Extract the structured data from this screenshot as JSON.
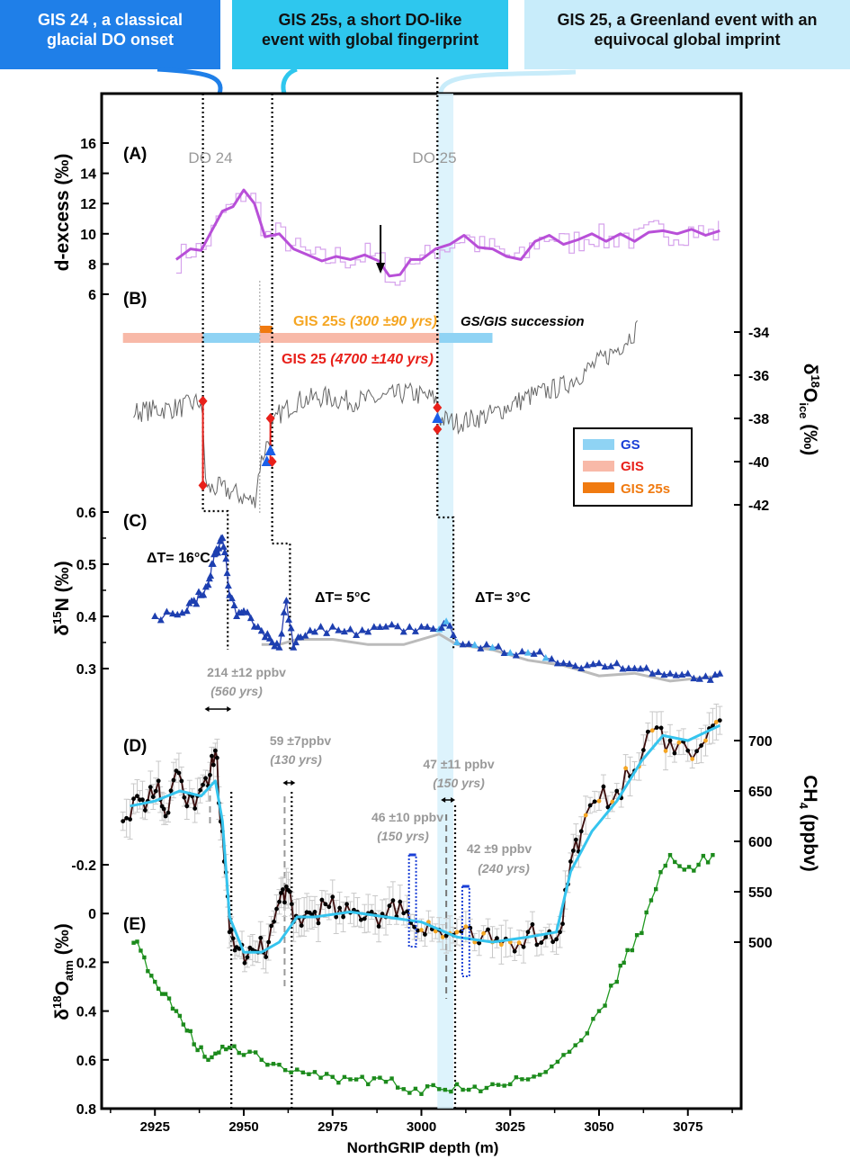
{
  "callouts": [
    {
      "line1": "GIS 24 , a classical",
      "line2": "glacial DO onset",
      "color": "#1f7fe8"
    },
    {
      "line1": "GIS 25s, a short DO-like",
      "line2": "event with global fingerprint",
      "color": "#2ec7ee"
    },
    {
      "line1": "GIS 25, a Greenland event with an",
      "line2": "equivocal global imprint",
      "color": "#c8ecfa"
    }
  ],
  "panel_letters": [
    "(A)",
    "(B)",
    "(C)",
    "(D)",
    "(E)"
  ],
  "event_labels": {
    "do24": "DO 24",
    "do25": "DO 25"
  },
  "succession": {
    "gis25s_name": "GIS 25s",
    "gis25s_duration": "(300 ±90 yrs)",
    "gis25_name": "GIS 25",
    "gis25_duration": "(4700 ±140 yrs)",
    "caption": "GS/GIS succession",
    "bars": [
      {
        "kind": "GIS",
        "from": 2916,
        "to": 2938.5
      },
      {
        "kind": "GS",
        "from": 2938.5,
        "to": 2954.5
      },
      {
        "kind": "GIS",
        "from": 2954.5,
        "to": 3005
      },
      {
        "kind": "GS",
        "from": 3005,
        "to": 3020
      },
      {
        "kind": "GIS25s",
        "from": 2954.5,
        "to": 2958
      }
    ]
  },
  "legend": {
    "gs": "GS",
    "gis": "GIS",
    "gis25s": "GIS 25s",
    "colors": {
      "gs": "#8fd3f4",
      "gis": "#f8b9a8",
      "gis25s": "#f07a10"
    }
  },
  "delta_t": {
    "a": "ΔT= 16°C",
    "b": "ΔT= 5°C",
    "c": "ΔT= 3°C"
  },
  "ch4_annotations": [
    {
      "value": "214 ±12 ppbv",
      "years": "(560 yrs)"
    },
    {
      "value": "59 ±7ppbv",
      "years": "(130 yrs)"
    },
    {
      "value": "47 ±11 ppbv",
      "years": "(150 yrs)"
    },
    {
      "value": "46 ±10 ppbv",
      "years": "(150 yrs)"
    },
    {
      "value": "42 ±9 ppbv",
      "years": "(240 yrs)"
    }
  ],
  "axes": {
    "x_label": "NorthGRIP depth (m)",
    "dexcess_label": "d-excess (‰)",
    "d18oice_label_main": "δ",
    "d18oice_label_sup": "18",
    "d18oice_label_rest": "O",
    "d18oice_label_sub": "ice",
    "d18oice_label_unit": " (‰)",
    "d15n_label_main": "δ",
    "d15n_label_sup": "15",
    "d15n_label_rest": "N (‰)",
    "ch4_label_main": "CH",
    "ch4_label_sub": "4",
    "ch4_label_unit": " (ppbv)",
    "d18oatm_label_main": "δ",
    "d18oatm_label_sup": "18",
    "d18oatm_label_rest": "O",
    "d18oatm_label_sub": "atm",
    "d18oatm_label_unit": " (‰)"
  },
  "chart_data": {
    "type": "line",
    "x_ticks": [
      "2925",
      "2950",
      "2975",
      "3000",
      "3025",
      "3050",
      "3075"
    ],
    "xlim": [
      2910,
      3090
    ],
    "panels": {
      "A": {
        "ylabel": "d-excess (‰)",
        "y_ticks": [
          "6",
          "8",
          "10",
          "12",
          "14",
          "16"
        ],
        "ylim": [
          5,
          17
        ],
        "smooth": {
          "x": [
            2931,
            2935,
            2938,
            2941,
            2944,
            2947,
            2950,
            2953,
            2956,
            2960,
            2964,
            2968,
            2972,
            2976,
            2980,
            2984,
            2988,
            2991,
            2994,
            2997,
            3000,
            3004,
            3008,
            3012,
            3016,
            3020,
            3024,
            3028,
            3032,
            3036,
            3040,
            3044,
            3048,
            3052,
            3056,
            3060,
            3064,
            3068,
            3072,
            3076,
            3080,
            3084
          ],
          "y": [
            8.3,
            9.0,
            8.9,
            10.2,
            11.5,
            11.8,
            12.9,
            12.0,
            9.8,
            10.0,
            9.0,
            8.6,
            8.2,
            8.5,
            8.3,
            8.6,
            8.2,
            7.2,
            7.3,
            8.3,
            8.3,
            9.0,
            9.3,
            9.9,
            9.1,
            9.0,
            8.5,
            8.3,
            9.5,
            9.9,
            9.3,
            9.6,
            10.0,
            9.5,
            10.0,
            9.5,
            10.1,
            10.2,
            10.0,
            10.3,
            9.9,
            10.2
          ]
        }
      },
      "B": {
        "ylabel": "δ18Oice (‰)",
        "y_ticks": [
          "-34",
          "-36",
          "-38",
          "-40",
          "-42"
        ],
        "ylim": [
          -43,
          -33
        ],
        "series": {
          "x": [
            2919,
            2925,
            2932,
            2938,
            2939.5,
            2943,
            2948,
            2953,
            2954.5,
            2957,
            2960,
            2965,
            2972,
            2980,
            2988,
            2996,
            3004,
            3005,
            3010,
            3020,
            3030,
            3040,
            3048,
            3055,
            3061
          ],
          "y": [
            -37.7,
            -37.6,
            -37.5,
            -37.2,
            -41.3,
            -41.2,
            -41.5,
            -41.9,
            -40.2,
            -38.9,
            -37.8,
            -37.2,
            -37.0,
            -37.2,
            -37.1,
            -36.8,
            -37.1,
            -38.0,
            -38.2,
            -37.8,
            -37.0,
            -36.5,
            -35.6,
            -34.8,
            -33.8
          ]
        },
        "markers": [
          {
            "x": 2938.5,
            "y": -37.2,
            "color": "red"
          },
          {
            "x": 2938.5,
            "y": -41.1,
            "color": "red"
          },
          {
            "x": 2956.5,
            "y": -40.0,
            "color": "blue"
          },
          {
            "x": 2957.5,
            "y": -38.0,
            "color": "red"
          },
          {
            "x": 2957.5,
            "y": -39.5,
            "color": "blue"
          },
          {
            "x": 2958,
            "y": -40.0,
            "color": "red"
          },
          {
            "x": 3004.5,
            "y": -37.5,
            "color": "red"
          },
          {
            "x": 3004.5,
            "y": -38.0,
            "color": "blue"
          },
          {
            "x": 3004.5,
            "y": -38.5,
            "color": "red"
          }
        ]
      },
      "C": {
        "ylabel": "δ15N (‰)",
        "y_ticks": [
          "0.3",
          "0.4",
          "0.5",
          "0.6"
        ],
        "ylim": [
          0.27,
          0.62
        ],
        "series": {
          "x": [
            2925,
            2930,
            2934,
            2936,
            2938,
            2940,
            2941,
            2942,
            2943,
            2944,
            2945,
            2946,
            2948,
            2950,
            2953,
            2956,
            2958,
            2960,
            2962,
            2964,
            2966,
            2970,
            2975,
            2980,
            2985,
            2990,
            2995,
            3000,
            3005,
            3007,
            3010,
            3015,
            3020,
            3025,
            3030,
            3035,
            3040,
            3045,
            3050,
            3055,
            3060,
            3065,
            3070,
            3075,
            3080,
            3084
          ],
          "y": [
            0.4,
            0.405,
            0.41,
            0.43,
            0.44,
            0.46,
            0.5,
            0.52,
            0.53,
            0.55,
            0.51,
            0.44,
            0.4,
            0.41,
            0.38,
            0.36,
            0.35,
            0.34,
            0.43,
            0.34,
            0.36,
            0.37,
            0.38,
            0.375,
            0.37,
            0.38,
            0.37,
            0.38,
            0.375,
            0.39,
            0.35,
            0.345,
            0.34,
            0.33,
            0.33,
            0.32,
            0.31,
            0.3,
            0.31,
            0.31,
            0.3,
            0.29,
            0.29,
            0.29,
            0.285,
            0.29
          ]
        },
        "model": {
          "x": [
            2955,
            2960,
            2965,
            2970,
            2975,
            2985,
            2995,
            3005,
            3010,
            3020,
            3030,
            3040,
            3050,
            3060,
            3070,
            3084
          ],
          "y": [
            0.35,
            0.34,
            0.36,
            0.35,
            0.36,
            0.34,
            0.35,
            0.36,
            0.35,
            0.33,
            0.32,
            0.3,
            0.29,
            0.285,
            0.28,
            0.28
          ]
        }
      },
      "D": {
        "ylabel": "CH4 (ppbv)",
        "y_ticks": [
          "500",
          "550",
          "600",
          "650",
          "700"
        ],
        "ylim": [
          460,
          740
        ],
        "series": {
          "x": [
            2916,
            2920,
            2923,
            2926,
            2928,
            2931,
            2934,
            2937,
            2940,
            2942,
            2944,
            2946,
            2948,
            2951,
            2954,
            2957,
            2960,
            2962,
            2964,
            2967,
            2970,
            2974,
            2978,
            2982,
            2986,
            2990,
            2994,
            2998,
            3002,
            3006,
            3010,
            3015,
            3020,
            3025,
            3030,
            3035,
            3039,
            3042,
            3045,
            3050,
            3055,
            3060,
            3065,
            3070,
            3075,
            3080,
            3084
          ],
          "y": [
            620,
            645,
            640,
            660,
            625,
            670,
            635,
            645,
            655,
            690,
            610,
            510,
            495,
            485,
            490,
            500,
            540,
            555,
            520,
            525,
            530,
            535,
            525,
            530,
            530,
            525,
            540,
            515,
            520,
            505,
            510,
            500,
            500,
            500,
            510,
            505,
            510,
            580,
            610,
            640,
            650,
            670,
            710,
            700,
            690,
            700,
            720
          ]
        },
        "smooth": {
          "x": [
            2918,
            2925,
            2932,
            2938,
            2942,
            2944,
            2946,
            2950,
            2955,
            2960,
            2965,
            2970,
            2980,
            2990,
            3000,
            3010,
            3020,
            3030,
            3038,
            3042,
            3048,
            3055,
            3062,
            3068,
            3075,
            3084
          ],
          "y": [
            635,
            640,
            650,
            645,
            660,
            620,
            525,
            490,
            490,
            500,
            525,
            525,
            530,
            525,
            520,
            505,
            500,
            505,
            510,
            570,
            610,
            640,
            680,
            705,
            700,
            715
          ]
        }
      },
      "E": {
        "ylabel": "δ18Oatm (‰)",
        "y_ticks": [
          "-0.2",
          "0",
          "0.2",
          "0.4",
          "0.6",
          "0.8"
        ],
        "ylim": [
          0.82,
          -0.32
        ],
        "series": {
          "x": [
            2919,
            2922,
            2925,
            2928,
            2931,
            2934,
            2937,
            2940,
            2943,
            2946,
            2950,
            2955,
            2960,
            2965,
            2970,
            2975,
            2980,
            2985,
            2990,
            2995,
            3000,
            3005,
            3010,
            3015,
            3020,
            3025,
            3030,
            3035,
            3040,
            3045,
            3050,
            3055,
            3058,
            3062,
            3066,
            3070,
            3074,
            3078,
            3082
          ],
          "y": [
            0.12,
            0.18,
            0.28,
            0.33,
            0.4,
            0.48,
            0.56,
            0.6,
            0.57,
            0.55,
            0.58,
            0.6,
            0.62,
            0.64,
            0.65,
            0.67,
            0.68,
            0.7,
            0.69,
            0.72,
            0.74,
            0.72,
            0.7,
            0.71,
            0.7,
            0.7,
            0.68,
            0.65,
            0.58,
            0.52,
            0.4,
            0.28,
            0.15,
            0.08,
            -0.1,
            -0.24,
            -0.18,
            -0.2,
            -0.24
          ]
        }
      }
    }
  }
}
